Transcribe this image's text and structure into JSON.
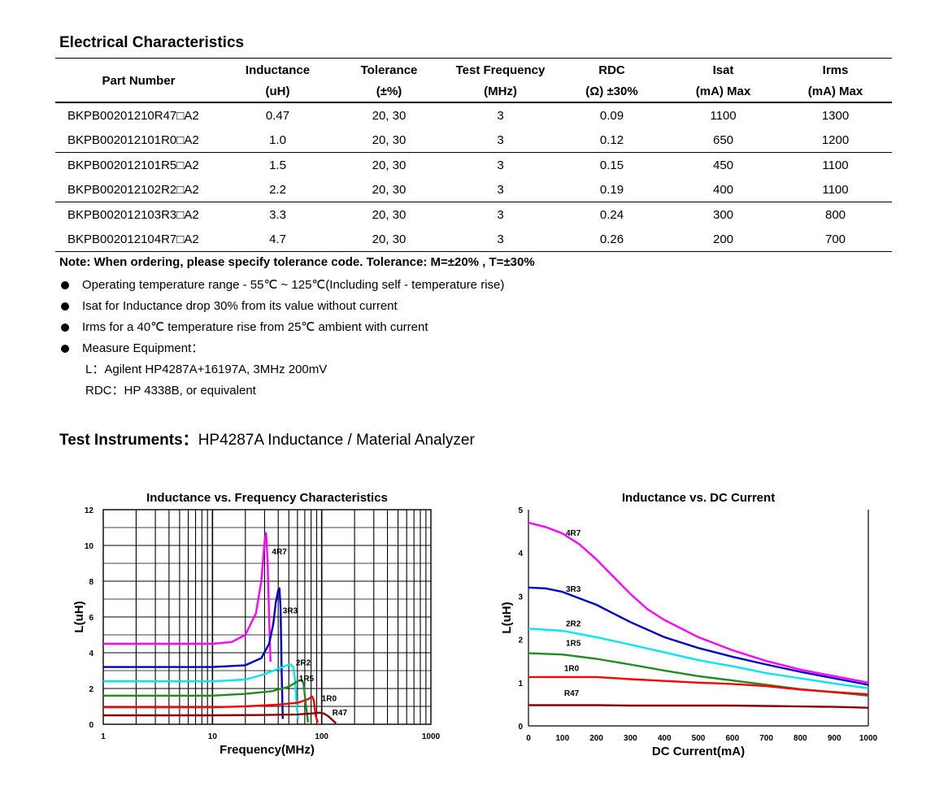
{
  "electrical": {
    "title": "Electrical Characteristics",
    "headers": {
      "part_number": "Part Number",
      "inductance_l1": "Inductance",
      "inductance_l2": "(uH)",
      "tolerance_l1": "Tolerance",
      "tolerance_l2": "(±%)",
      "freq_l1": "Test Frequency",
      "freq_l2": "(MHz)",
      "rdc_l1": "RDC",
      "rdc_l2": "(Ω) ±30%",
      "isat_l1": "Isat",
      "isat_l2": "(mA) Max",
      "irms_l1": "Irms",
      "irms_l2": "(mA) Max"
    },
    "rows": [
      {
        "part": "BKPB00201210R47□A2",
        "inductance": "0.47",
        "tolerance": "20, 30",
        "freq": "3",
        "rdc": "0.09",
        "isat": "1100",
        "irms": "1300"
      },
      {
        "part": "BKPB002012101R0□A2",
        "inductance": "1.0",
        "tolerance": "20, 30",
        "freq": "3",
        "rdc": "0.12",
        "isat": "650",
        "irms": "1200"
      },
      {
        "part": "BKPB002012101R5□A2",
        "inductance": "1.5",
        "tolerance": "20, 30",
        "freq": "3",
        "rdc": "0.15",
        "isat": "450",
        "irms": "1100"
      },
      {
        "part": "BKPB002012102R2□A2",
        "inductance": "2.2",
        "tolerance": "20, 30",
        "freq": "3",
        "rdc": "0.19",
        "isat": "400",
        "irms": "1100"
      },
      {
        "part": "BKPB002012103R3□A2",
        "inductance": "3.3",
        "tolerance": "20, 30",
        "freq": "3",
        "rdc": "0.24",
        "isat": "300",
        "irms": "800"
      },
      {
        "part": "BKPB002012104R7□A2",
        "inductance": "4.7",
        "tolerance": "20, 30",
        "freq": "3",
        "rdc": "0.26",
        "isat": "200",
        "irms": "700"
      }
    ]
  },
  "notes": {
    "note": "Note: When ordering, please specify tolerance code. Tolerance: M=±20% , T=±30%",
    "bullets": [
      "Operating temperature range - 55℃ ~ 125℃(Including self - temperature rise)",
      "Isat for Inductance drop 30% from its value without current",
      "Irms for a 40℃  temperature rise from 25℃  ambient with current",
      "Measure Equipment："
    ],
    "equipment_l": "L：Agilent HP4287A+16197A, 3MHz 200mV",
    "equipment_rdc": "RDC：HP 4338B, or equivalent"
  },
  "test_instruments": {
    "label": "Test Instruments：",
    "value": "HP4287A Inductance / Material Analyzer"
  },
  "chart_data": [
    {
      "type": "line",
      "title": "Inductance vs. Frequency Characteristics",
      "xlabel": "Frequency(MHz)",
      "ylabel": "L(uH)",
      "xscale": "log",
      "xlim": [
        1,
        1000
      ],
      "ylim": [
        0,
        12
      ],
      "xticks": [
        "1",
        "10",
        "100",
        "1000"
      ],
      "yticks": [
        "0",
        "2",
        "4",
        "6",
        "8",
        "10",
        "12"
      ],
      "grid": true,
      "series": [
        {
          "name": "4R7",
          "color": "#ff00ff",
          "x": [
            1,
            3,
            10,
            15,
            20,
            25,
            28,
            30,
            31,
            32,
            33,
            34
          ],
          "y": [
            4.5,
            4.5,
            4.5,
            4.6,
            5.0,
            6.2,
            8.0,
            10.2,
            10.7,
            9.0,
            6.0,
            3.5
          ]
        },
        {
          "name": "3R3",
          "color": "#0000cc",
          "x": [
            1,
            10,
            20,
            28,
            33,
            36,
            38,
            40,
            41,
            42,
            43,
            44
          ],
          "y": [
            3.2,
            3.2,
            3.3,
            3.7,
            4.5,
            5.6,
            6.8,
            7.5,
            7.6,
            6.5,
            3.0,
            0.3
          ]
        },
        {
          "name": "2R2",
          "color": "#00e5ee",
          "x": [
            1,
            10,
            20,
            30,
            40,
            48,
            52,
            55,
            57,
            59,
            61
          ],
          "y": [
            2.4,
            2.4,
            2.5,
            2.8,
            3.1,
            3.3,
            3.35,
            3.2,
            2.5,
            1.0,
            0.3
          ]
        },
        {
          "name": "1R5",
          "color": "#1e8c1e",
          "x": [
            1,
            10,
            20,
            35,
            50,
            60,
            65,
            68,
            72,
            75
          ],
          "y": [
            1.6,
            1.6,
            1.7,
            1.85,
            2.1,
            2.4,
            2.5,
            2.3,
            1.0,
            0.1
          ]
        },
        {
          "name": "1R0",
          "color": "#ff0000",
          "x": [
            1,
            10,
            20,
            40,
            60,
            75,
            82,
            85,
            88,
            92
          ],
          "y": [
            0.95,
            0.95,
            1.0,
            1.1,
            1.2,
            1.4,
            1.55,
            1.3,
            0.5,
            0.1
          ]
        },
        {
          "name": "R47",
          "color": "#8b0000",
          "x": [
            1,
            10,
            30,
            60,
            80,
            95,
            105,
            115,
            125,
            135
          ],
          "y": [
            0.5,
            0.5,
            0.52,
            0.55,
            0.6,
            0.65,
            0.6,
            0.45,
            0.25,
            0.05
          ]
        }
      ]
    },
    {
      "type": "line",
      "title": "Inductance vs. DC Current",
      "xlabel": "DC Current(mA)",
      "ylabel": "L(uH)",
      "xlim": [
        0,
        1000
      ],
      "ylim": [
        0,
        5
      ],
      "xticks": [
        "0",
        "100",
        "200",
        "300",
        "400",
        "500",
        "600",
        "700",
        "800",
        "900",
        "1000"
      ],
      "yticks": [
        "0",
        "1",
        "2",
        "3",
        "4",
        "5"
      ],
      "grid": false,
      "series": [
        {
          "name": "4R7",
          "color": "#ff00ff",
          "x": [
            0,
            50,
            100,
            150,
            200,
            250,
            300,
            350,
            400,
            500,
            600,
            700,
            800,
            900,
            1000
          ],
          "y": [
            4.7,
            4.6,
            4.45,
            4.2,
            3.85,
            3.45,
            3.05,
            2.7,
            2.45,
            2.05,
            1.75,
            1.5,
            1.3,
            1.15,
            1.0
          ]
        },
        {
          "name": "3R3",
          "color": "#0000cc",
          "x": [
            0,
            50,
            100,
            150,
            200,
            250,
            300,
            400,
            500,
            600,
            700,
            800,
            900,
            1000
          ],
          "y": [
            3.2,
            3.18,
            3.1,
            2.95,
            2.8,
            2.6,
            2.4,
            2.05,
            1.8,
            1.6,
            1.42,
            1.25,
            1.1,
            0.95
          ]
        },
        {
          "name": "2R2",
          "color": "#00e5ee",
          "x": [
            0,
            100,
            200,
            300,
            400,
            500,
            600,
            700,
            800,
            900,
            1000
          ],
          "y": [
            2.25,
            2.2,
            2.05,
            1.88,
            1.7,
            1.52,
            1.38,
            1.22,
            1.1,
            0.98,
            0.87
          ]
        },
        {
          "name": "1R5",
          "color": "#1e8c1e",
          "x": [
            0,
            100,
            200,
            300,
            400,
            500,
            600,
            700,
            800,
            900,
            1000
          ],
          "y": [
            1.68,
            1.65,
            1.55,
            1.42,
            1.28,
            1.15,
            1.05,
            0.95,
            0.85,
            0.78,
            0.7
          ]
        },
        {
          "name": "1R0",
          "color": "#ff0000",
          "x": [
            0,
            100,
            200,
            300,
            400,
            500,
            600,
            700,
            800,
            900,
            1000
          ],
          "y": [
            1.13,
            1.13,
            1.13,
            1.08,
            1.04,
            1.0,
            0.97,
            0.92,
            0.84,
            0.78,
            0.73
          ]
        },
        {
          "name": "R47",
          "color": "#8b0000",
          "x": [
            0,
            100,
            200,
            300,
            400,
            500,
            600,
            700,
            800,
            900,
            1000
          ],
          "y": [
            0.48,
            0.48,
            0.48,
            0.47,
            0.47,
            0.47,
            0.47,
            0.46,
            0.45,
            0.44,
            0.42
          ]
        }
      ]
    }
  ]
}
